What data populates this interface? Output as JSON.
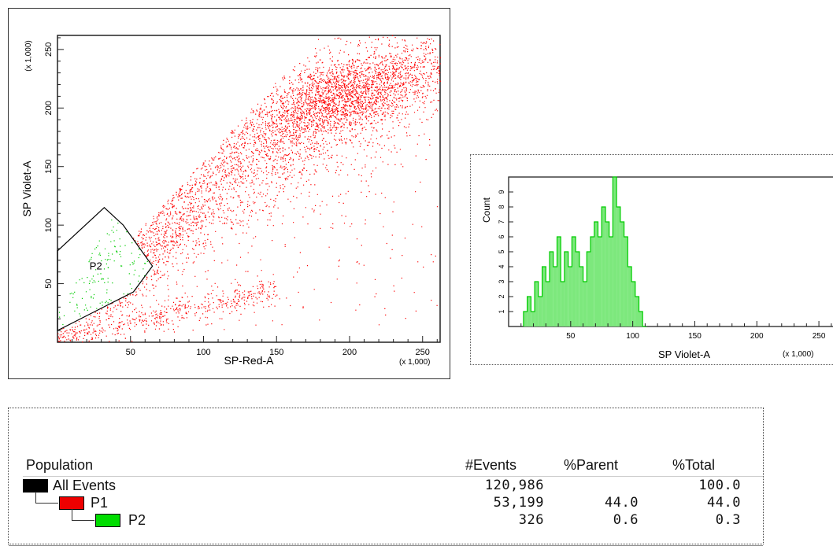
{
  "scatter": {
    "chart_data": {
      "type": "scatter",
      "xlabel": "SP-Red-A",
      "ylabel": "SP Violet-A",
      "x_multiplier": "(x 1,000)",
      "y_multiplier": "(x 1,000)",
      "xlim": [
        0,
        262
      ],
      "ylim": [
        0,
        262
      ],
      "x_ticks": [
        50,
        100,
        150,
        200,
        250
      ],
      "y_ticks": [
        50,
        100,
        150,
        200,
        250
      ],
      "gate": {
        "name": "P2",
        "vertices": [
          [
            0,
            78
          ],
          [
            32,
            115
          ],
          [
            45,
            100
          ],
          [
            65,
            65
          ],
          [
            52,
            43
          ],
          [
            0,
            10
          ]
        ]
      },
      "series": [
        {
          "name": "P1",
          "color": "#ff0000"
        },
        {
          "name": "P2",
          "color": "#00cc00"
        }
      ]
    }
  },
  "histogram": {
    "chart_data": {
      "type": "bar",
      "xlabel": "SP Violet-A",
      "ylabel": "Count",
      "x_multiplier": "(x 1,000)",
      "xlim": [
        0,
        262
      ],
      "ylim": [
        0,
        10
      ],
      "x_ticks": [
        50,
        100,
        150,
        200,
        250
      ],
      "y_ticks": [
        1,
        2,
        3,
        4,
        5,
        6,
        7,
        8,
        9
      ],
      "fill_color": "#7de87d",
      "line_color": "#00cc00",
      "x": [
        12,
        15,
        18,
        21,
        24,
        27,
        30,
        33,
        36,
        39,
        42,
        45,
        48,
        51,
        54,
        57,
        60,
        63,
        66,
        69,
        72,
        75,
        78,
        81,
        84,
        87,
        90,
        93,
        96,
        99,
        102,
        105,
        108
      ],
      "values": [
        1,
        2,
        1,
        3,
        2,
        4,
        3,
        5,
        4,
        6,
        3,
        5,
        4,
        6,
        5,
        4,
        3,
        5,
        6,
        7,
        6,
        8,
        7,
        6,
        10,
        8,
        7,
        6,
        4,
        3,
        2,
        1,
        0
      ]
    }
  },
  "stats_table": {
    "headers": {
      "population": "Population",
      "events": "#Events",
      "parent": "%Parent",
      "total": "%Total"
    },
    "rows": [
      {
        "name": "All Events",
        "events": "120,986",
        "parent": "",
        "total": "100.0",
        "color": "#000000"
      },
      {
        "name": "P1",
        "events": "53,199",
        "parent": "44.0",
        "total": "44.0",
        "color": "#ff0000"
      },
      {
        "name": "P2",
        "events": "326",
        "parent": "0.6",
        "total": "0.3",
        "color": "#00dd00"
      }
    ]
  }
}
